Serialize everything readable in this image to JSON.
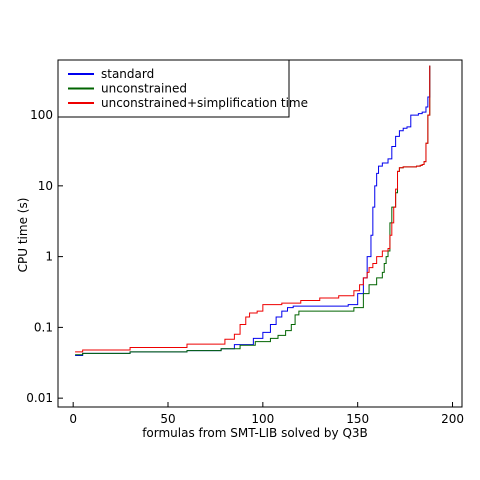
{
  "chart_data": {
    "type": "line",
    "title": "",
    "xlabel": "formulas from SMT-LIB solved by Q3B",
    "ylabel": "CPU time (s)",
    "xlim": [
      -8,
      205
    ],
    "ylim": [
      0.0075,
      600
    ],
    "yscale": "log",
    "x_ticks": [
      0,
      50,
      100,
      150,
      200
    ],
    "x_tick_labels": [
      "0",
      "50",
      "100",
      "150",
      "200"
    ],
    "y_ticks": [
      0.01,
      0.1,
      1,
      10,
      100
    ],
    "y_tick_labels": [
      "0.01",
      "0.1",
      "1",
      "10",
      "100"
    ],
    "grid": false,
    "legend_position": "top-left",
    "series": [
      {
        "name": "standard",
        "color": "#0000ee",
        "points": [
          [
            1,
            0.04
          ],
          [
            5,
            0.043
          ],
          [
            30,
            0.045
          ],
          [
            60,
            0.047
          ],
          [
            78,
            0.05
          ],
          [
            85,
            0.057
          ],
          [
            95,
            0.07
          ],
          [
            100,
            0.085
          ],
          [
            104,
            0.11
          ],
          [
            107,
            0.14
          ],
          [
            110,
            0.17
          ],
          [
            113,
            0.19
          ],
          [
            116,
            0.2
          ],
          [
            120,
            0.2
          ],
          [
            135,
            0.2
          ],
          [
            145,
            0.21
          ],
          [
            150,
            0.3
          ],
          [
            153,
            0.5
          ],
          [
            155,
            1.0
          ],
          [
            157,
            2.0
          ],
          [
            158,
            5
          ],
          [
            159,
            10
          ],
          [
            160,
            15
          ],
          [
            161,
            19
          ],
          [
            163,
            21
          ],
          [
            166,
            24
          ],
          [
            168,
            36
          ],
          [
            170,
            50
          ],
          [
            172,
            60
          ],
          [
            174,
            65
          ],
          [
            176,
            68
          ],
          [
            178,
            100
          ],
          [
            182,
            105
          ],
          [
            184,
            110
          ],
          [
            186,
            130
          ],
          [
            187,
            180
          ],
          [
            188,
            500
          ]
        ]
      },
      {
        "name": "unconstrained",
        "color": "#006400",
        "points": [
          [
            1,
            0.041
          ],
          [
            5,
            0.043
          ],
          [
            30,
            0.045
          ],
          [
            60,
            0.047
          ],
          [
            78,
            0.05
          ],
          [
            88,
            0.056
          ],
          [
            96,
            0.063
          ],
          [
            104,
            0.07
          ],
          [
            108,
            0.077
          ],
          [
            112,
            0.09
          ],
          [
            115,
            0.11
          ],
          [
            117,
            0.15
          ],
          [
            119,
            0.17
          ],
          [
            122,
            0.17
          ],
          [
            140,
            0.17
          ],
          [
            148,
            0.19
          ],
          [
            153,
            0.3
          ],
          [
            156,
            0.4
          ],
          [
            160,
            0.5
          ],
          [
            163,
            0.6
          ],
          [
            164,
            0.8
          ],
          [
            165,
            1.0
          ],
          [
            166,
            1.2
          ],
          [
            167,
            3
          ],
          [
            168,
            5
          ],
          [
            170,
            8
          ],
          [
            171,
            16
          ],
          [
            172,
            18
          ],
          [
            174,
            18.5
          ],
          [
            181,
            19
          ],
          [
            183,
            19.5
          ],
          [
            184,
            20
          ],
          [
            185,
            22
          ],
          [
            186,
            40
          ],
          [
            187,
            100
          ],
          [
            188,
            500
          ]
        ]
      },
      {
        "name": "unconstrained+simplification time",
        "color": "#ee0000",
        "points": [
          [
            1,
            0.045
          ],
          [
            5,
            0.048
          ],
          [
            30,
            0.052
          ],
          [
            60,
            0.058
          ],
          [
            80,
            0.068
          ],
          [
            85,
            0.08
          ],
          [
            88,
            0.11
          ],
          [
            91,
            0.14
          ],
          [
            93,
            0.16
          ],
          [
            95,
            0.16
          ],
          [
            97,
            0.17
          ],
          [
            100,
            0.21
          ],
          [
            110,
            0.22
          ],
          [
            120,
            0.24
          ],
          [
            130,
            0.26
          ],
          [
            140,
            0.28
          ],
          [
            148,
            0.33
          ],
          [
            151,
            0.4
          ],
          [
            153,
            0.5
          ],
          [
            155,
            0.6
          ],
          [
            156,
            0.7
          ],
          [
            158,
            0.8
          ],
          [
            160,
            1.0
          ],
          [
            163,
            1.2
          ],
          [
            166,
            1.3
          ],
          [
            167,
            2.0
          ],
          [
            168,
            3
          ],
          [
            169,
            5
          ],
          [
            170,
            9
          ],
          [
            171,
            16
          ],
          [
            172,
            18
          ],
          [
            174,
            18.5
          ],
          [
            181,
            19
          ],
          [
            183,
            19.5
          ],
          [
            184,
            20
          ],
          [
            185,
            22
          ],
          [
            186,
            40
          ],
          [
            187,
            100
          ],
          [
            188,
            500
          ]
        ]
      }
    ]
  }
}
